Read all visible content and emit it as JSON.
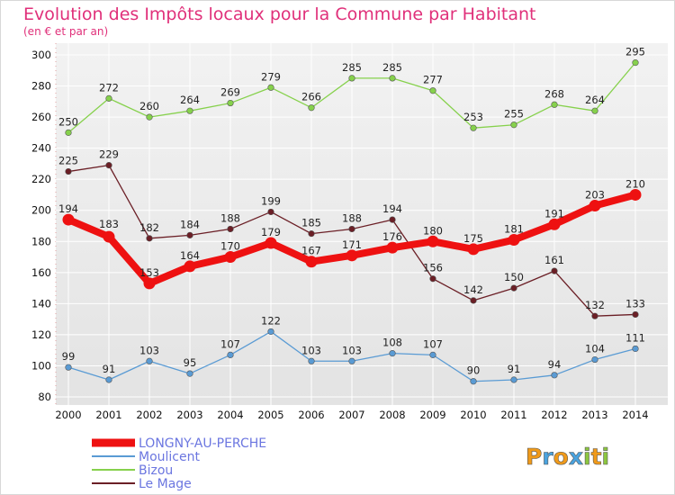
{
  "chart_data": {
    "type": "line",
    "title": "Evolution des Impôts locaux pour la Commune par Habitant",
    "subtitle": "(en € et par an)",
    "xlabel": "",
    "ylabel": "",
    "ylim": [
      80,
      300
    ],
    "yticks": [
      80,
      100,
      120,
      140,
      160,
      180,
      200,
      220,
      240,
      260,
      280,
      300
    ],
    "grid": true,
    "categories": [
      "2000",
      "2001",
      "2002",
      "2003",
      "2004",
      "2005",
      "2006",
      "2007",
      "2008",
      "2009",
      "2010",
      "2011",
      "2012",
      "2013",
      "2014"
    ],
    "series": [
      {
        "name": "LONGNY-AU-PERCHE",
        "color": "#ee1111",
        "values": [
          194,
          183,
          153,
          164,
          170,
          179,
          167,
          171,
          176,
          180,
          175,
          181,
          191,
          203,
          210
        ]
      },
      {
        "name": "Moulicent",
        "color": "#5a9bd4",
        "values": [
          99,
          91,
          103,
          95,
          107,
          122,
          103,
          103,
          108,
          107,
          90,
          91,
          94,
          104,
          111
        ]
      },
      {
        "name": "Bizou",
        "color": "#86d14c",
        "values": [
          250,
          272,
          260,
          264,
          269,
          279,
          266,
          285,
          285,
          277,
          253,
          255,
          268,
          264,
          295
        ]
      },
      {
        "name": "Le Mage",
        "color": "#6b1f26",
        "values": [
          225,
          229,
          182,
          184,
          188,
          199,
          185,
          188,
          194,
          156,
          142,
          150,
          161,
          132,
          133
        ]
      }
    ],
    "legend_position": "bottom-left"
  },
  "logo": {
    "letters": [
      "P",
      "r",
      "o",
      "x",
      "i",
      "t",
      "i"
    ],
    "colors": [
      "#f09a1a",
      "#4aa3df",
      "#f09a1a",
      "#4aa3df",
      "#8cc63f",
      "#f09a1a",
      "#8cc63f"
    ]
  }
}
